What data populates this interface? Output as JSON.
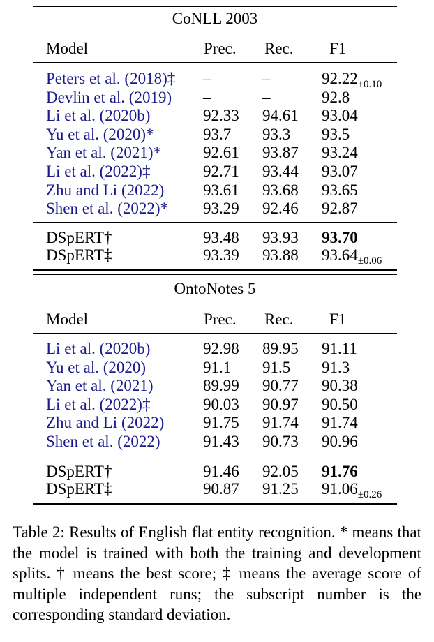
{
  "tables": [
    {
      "title": "CoNLL 2003",
      "headers": {
        "model": "Model",
        "prec": "Prec.",
        "rec": "Rec.",
        "f1": "F1"
      },
      "rows": [
        {
          "model": "Peters et al. (2018)‡",
          "prec": "–",
          "rec": "–",
          "f1": "92.22",
          "std": "±0.10",
          "cite": true,
          "bold": false
        },
        {
          "model": "Devlin et al. (2019)",
          "prec": "–",
          "rec": "–",
          "f1": "92.8",
          "std": "",
          "cite": true,
          "bold": false
        },
        {
          "model": "Li et al. (2020b)",
          "prec": "92.33",
          "rec": "94.61",
          "f1": "93.04",
          "std": "",
          "cite": true,
          "bold": false
        },
        {
          "model": "Yu et al. (2020)*",
          "prec": "93.7",
          "rec": "93.3",
          "f1": "93.5",
          "std": "",
          "cite": true,
          "bold": false
        },
        {
          "model": "Yan et al. (2021)*",
          "prec": "92.61",
          "rec": "93.87",
          "f1": "93.24",
          "std": "",
          "cite": true,
          "bold": false
        },
        {
          "model": "Li et al. (2022)‡",
          "prec": "92.71",
          "rec": "93.44",
          "f1": "93.07",
          "std": "",
          "cite": true,
          "bold": false
        },
        {
          "model": "Zhu and Li (2022)",
          "prec": "93.61",
          "rec": "93.68",
          "f1": "93.65",
          "std": "",
          "cite": true,
          "bold": false
        },
        {
          "model": "Shen et al. (2022)*",
          "prec": "93.29",
          "rec": "92.46",
          "f1": "92.87",
          "std": "",
          "cite": true,
          "bold": false
        },
        {
          "model": "DSpERT†",
          "prec": "93.48",
          "rec": "93.93",
          "f1": "93.70",
          "std": "",
          "cite": false,
          "bold": true
        },
        {
          "model": "DSpERT‡",
          "prec": "93.39",
          "rec": "93.88",
          "f1": "93.64",
          "std": "±0.06",
          "cite": false,
          "bold": false
        }
      ]
    },
    {
      "title": "OntoNotes 5",
      "headers": {
        "model": "Model",
        "prec": "Prec.",
        "rec": "Rec.",
        "f1": "F1"
      },
      "rows": [
        {
          "model": "Li et al. (2020b)",
          "prec": "92.98",
          "rec": "89.95",
          "f1": "91.11",
          "std": "",
          "cite": true,
          "bold": false
        },
        {
          "model": "Yu et al. (2020)",
          "prec": "91.1",
          "rec": "91.5",
          "f1": "91.3",
          "std": "",
          "cite": true,
          "bold": false
        },
        {
          "model": "Yan et al. (2021)",
          "prec": "89.99",
          "rec": "90.77",
          "f1": "90.38",
          "std": "",
          "cite": true,
          "bold": false
        },
        {
          "model": "Li et al. (2022)‡",
          "prec": "90.03",
          "rec": "90.97",
          "f1": "90.50",
          "std": "",
          "cite": true,
          "bold": false
        },
        {
          "model": "Zhu and Li (2022)",
          "prec": "91.75",
          "rec": "91.74",
          "f1": "91.74",
          "std": "",
          "cite": true,
          "bold": false
        },
        {
          "model": "Shen et al. (2022)",
          "prec": "91.43",
          "rec": "90.73",
          "f1": "90.96",
          "std": "",
          "cite": true,
          "bold": false
        },
        {
          "model": "DSpERT†",
          "prec": "91.46",
          "rec": "92.05",
          "f1": "91.76",
          "std": "",
          "cite": false,
          "bold": true
        },
        {
          "model": "DSpERT‡",
          "prec": "90.87",
          "rec": "91.25",
          "f1": "91.06",
          "std": "±0.26",
          "cite": false,
          "bold": false
        }
      ]
    }
  ],
  "caption": "Table 2: Results of English flat entity recognition. * means that the model is trained with both the training and development splits. † means the best score; ‡ means the average score of multiple independent runs; the subscript number is the corresponding standard deviation."
}
